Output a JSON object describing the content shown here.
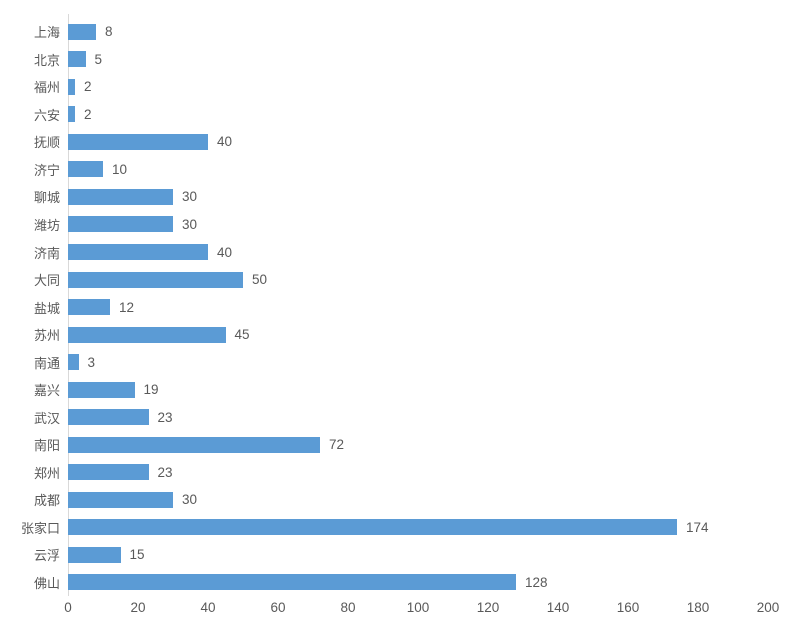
{
  "chart_data": {
    "type": "bar",
    "orientation": "horizontal",
    "title": "",
    "xlabel": "",
    "ylabel": "",
    "categories": [
      "上海",
      "北京",
      "福州",
      "六安",
      "抚顺",
      "济宁",
      "聊城",
      "潍坊",
      "济南",
      "大同",
      "盐城",
      "苏州",
      "南通",
      "嘉兴",
      "武汉",
      "南阳",
      "郑州",
      "成都",
      "张家口",
      "云浮",
      "佛山"
    ],
    "values": [
      8,
      5,
      2,
      2,
      40,
      10,
      30,
      30,
      40,
      50,
      12,
      45,
      3,
      19,
      23,
      72,
      23,
      30,
      174,
      15,
      128
    ],
    "data_labels": [
      8,
      5,
      2,
      2,
      40,
      10,
      30,
      30,
      40,
      50,
      12,
      45,
      3,
      19,
      23,
      72,
      23,
      30,
      174,
      15,
      128
    ],
    "xlim": [
      0,
      200
    ],
    "x_ticks": [
      0,
      20,
      40,
      60,
      80,
      100,
      120,
      140,
      160,
      180,
      200
    ],
    "grid": false,
    "legend": "none",
    "bar_color": "#5B9BD5",
    "text_color": "#595959",
    "axis_line_color": "#d9d9d9"
  }
}
